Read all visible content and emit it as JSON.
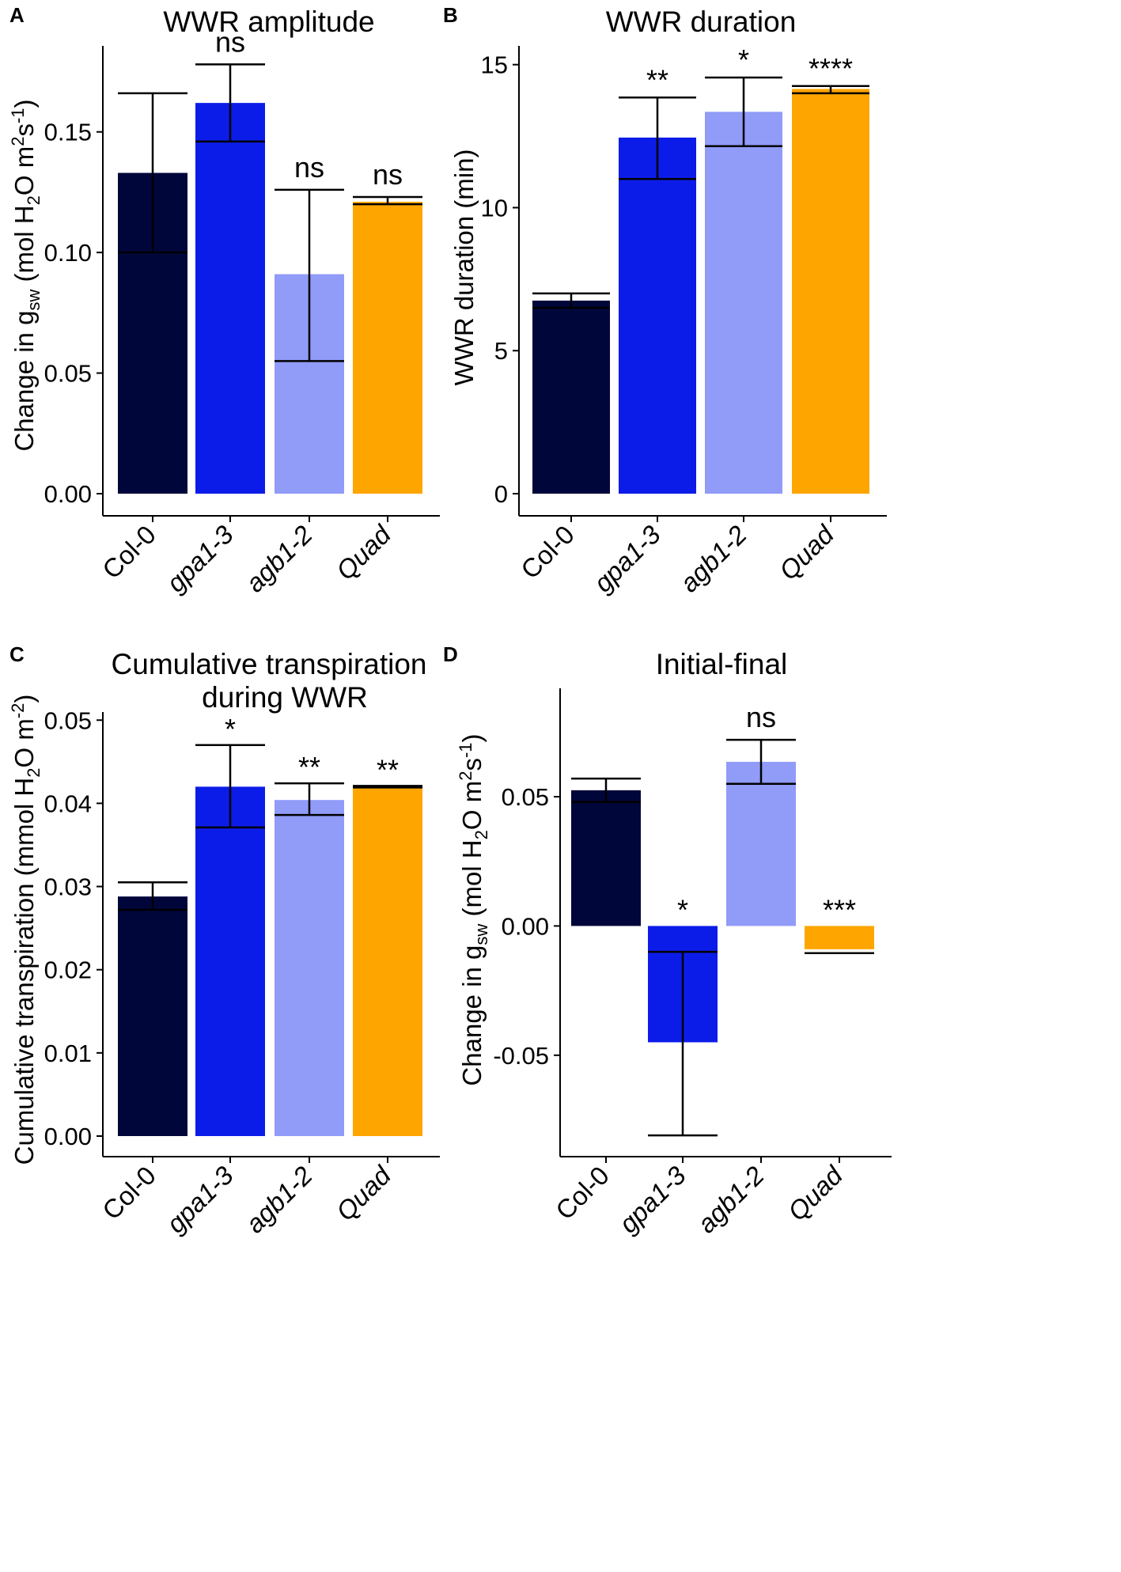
{
  "colors": {
    "Col-0": "#01063a",
    "gpa1-3": "#0c1ce8",
    "agb1-2": "#919bf8",
    "Quad": "#fea500"
  },
  "chart_data": [
    {
      "panel": "A",
      "type": "bar",
      "title": [
        "WWR amplitude"
      ],
      "ylabel": {
        "pre": "Change in g",
        "sub1": "sw",
        "mid": " (mol H",
        "sub2": "2",
        "mid2": "O m",
        "sup1": "2",
        "mid3": "s",
        "sup2": "-1",
        "post": ")"
      },
      "ylim": [
        0,
        0.185
      ],
      "yticks": [
        0.0,
        0.05,
        0.1,
        0.15
      ],
      "ytick_labels": [
        "0.00",
        "0.05",
        "0.10",
        "0.15"
      ],
      "categories": [
        "Col-0",
        "gpa1-3",
        "agb1-2",
        "Quad"
      ],
      "values": [
        0.133,
        0.162,
        0.091,
        0.121
      ],
      "err_low": [
        0.1,
        0.146,
        0.055,
        0.12
      ],
      "err_high": [
        0.166,
        0.178,
        0.126,
        0.123
      ],
      "significance": [
        "",
        "ns",
        "ns",
        "ns"
      ]
    },
    {
      "panel": "B",
      "type": "bar",
      "title": [
        "WWR duration"
      ],
      "ylabel": {
        "text": "WWR duration (min)"
      },
      "ylim": [
        0,
        15.6
      ],
      "yticks": [
        0,
        5,
        10,
        15
      ],
      "ytick_labels": [
        "0",
        "5",
        "10",
        "15"
      ],
      "categories": [
        "Col-0",
        "gpa1-3",
        "agb1-2",
        "Quad"
      ],
      "values": [
        6.75,
        12.45,
        13.35,
        14.15
      ],
      "err_low": [
        6.5,
        11.0,
        12.15,
        14.0
      ],
      "err_high": [
        7.0,
        13.85,
        14.55,
        14.25
      ],
      "significance": [
        "",
        "**",
        "*",
        "****"
      ]
    },
    {
      "panel": "C",
      "type": "bar",
      "title": [
        "Cumulative transpiration",
        "during WWR"
      ],
      "ylabel": {
        "pre": "Cumulative transpiration (mmol H",
        "sub1": "2",
        "mid": "O m",
        "sup1": "-2",
        "post": ")"
      },
      "ylim": [
        0,
        0.0505
      ],
      "yticks": [
        0.0,
        0.01,
        0.02,
        0.03,
        0.04,
        0.05
      ],
      "ytick_labels": [
        "0.00",
        "0.01",
        "0.02",
        "0.03",
        "0.04",
        "0.05"
      ],
      "categories": [
        "Col-0",
        "gpa1-3",
        "agb1-2",
        "Quad"
      ],
      "values": [
        0.0288,
        0.042,
        0.0404,
        0.042
      ],
      "err_low": [
        0.0272,
        0.0371,
        0.0386,
        0.0419
      ],
      "err_high": [
        0.0305,
        0.047,
        0.0424,
        0.0421
      ],
      "significance": [
        "",
        "*",
        "**",
        "**"
      ]
    },
    {
      "panel": "D",
      "type": "bar",
      "title": [
        "Initial-final"
      ],
      "ylabel": {
        "pre": "Change in g",
        "sub1": "sw",
        "mid": " (mol H",
        "sub2": "2",
        "mid2": "O m",
        "sup1": "2",
        "mid3": "s",
        "sup2": "-1",
        "post": ")"
      },
      "ylim": [
        -0.0825,
        0.095
      ],
      "yticks": [
        -0.05,
        0.0,
        0.05
      ],
      "ytick_labels": [
        "-0.05",
        "0.00",
        "0.05"
      ],
      "categories": [
        "Col-0",
        "gpa1-3",
        "agb1-2",
        "Quad"
      ],
      "values": [
        0.0525,
        -0.045,
        0.0635,
        -0.009
      ],
      "err_low": [
        0.048,
        -0.081,
        0.055,
        -0.0105
      ],
      "err_high": [
        0.057,
        -0.01,
        0.072,
        -0.0105
      ],
      "significance": [
        "",
        "*",
        "ns",
        "***"
      ]
    }
  ]
}
